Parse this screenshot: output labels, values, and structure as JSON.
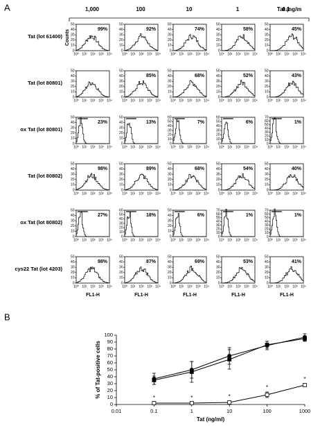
{
  "panel_a": {
    "label": "A",
    "concentrations": [
      "1,000",
      "100",
      "10",
      "1",
      "0.1"
    ],
    "concentration_unit": "Tat (ng/m",
    "counts_label": "Counts",
    "x_label": "FL1-H",
    "xticks": [
      "10⁰",
      "10¹",
      "10²",
      "10³",
      "10⁴"
    ],
    "rows": [
      {
        "label": "Tat (lot 61400)",
        "cells": [
          {
            "percent": "99%",
            "yticks": [
              0,
              10,
              20,
              30,
              40,
              50
            ]
          },
          {
            "percent": "92%",
            "yticks": [
              0,
              10,
              20,
              30,
              40,
              50
            ]
          },
          {
            "percent": "74%",
            "yticks": [
              0,
              10,
              20,
              30,
              40,
              50
            ]
          },
          {
            "percent": "58%",
            "yticks": [
              0,
              10,
              20,
              30,
              40,
              50
            ]
          },
          {
            "percent": "45%",
            "yticks": [
              0,
              10,
              20,
              30,
              40,
              50
            ]
          }
        ]
      },
      {
        "label": "Tat (lot 80801)",
        "cells": [
          {
            "percent": "",
            "yticks": [
              0,
              10,
              20,
              30,
              40,
              50
            ]
          },
          {
            "percent": "85%",
            "yticks": [
              0,
              10,
              20,
              30,
              40,
              50
            ]
          },
          {
            "percent": "68%",
            "yticks": [
              0,
              10,
              20,
              30,
              40,
              50
            ]
          },
          {
            "percent": "52%",
            "yticks": [
              0,
              10,
              20,
              30,
              40,
              50
            ]
          },
          {
            "percent": "43%",
            "yticks": [
              0,
              10,
              20,
              30,
              40,
              50
            ]
          }
        ]
      },
      {
        "label": "ox Tat (lot 80801)",
        "cells": [
          {
            "percent": "23%",
            "yticks": [
              0,
              10,
              20,
              30,
              40,
              50
            ]
          },
          {
            "percent": "13%",
            "yticks": [
              0,
              10,
              20,
              30,
              40,
              50
            ]
          },
          {
            "percent": "7%",
            "yticks": [
              0,
              10,
              20,
              30,
              40,
              50,
              60
            ]
          },
          {
            "percent": "6%",
            "yticks": [
              0,
              10,
              20,
              30,
              40,
              50,
              60
            ]
          },
          {
            "percent": "1%",
            "yticks": [
              0,
              10,
              20,
              30,
              40,
              50,
              60,
              70
            ]
          }
        ]
      },
      {
        "label": "Tat (lot 80802)",
        "cells": [
          {
            "percent": "98%",
            "yticks": [
              0,
              10,
              20,
              30,
              40,
              50
            ]
          },
          {
            "percent": "89%",
            "yticks": [
              0,
              10,
              20,
              30,
              40,
              50
            ]
          },
          {
            "percent": "68%",
            "yticks": [
              0,
              10,
              20,
              30,
              40,
              50
            ]
          },
          {
            "percent": "54%",
            "yticks": [
              0,
              10,
              20,
              30,
              40,
              50
            ]
          },
          {
            "percent": "40%",
            "yticks": [
              0,
              10,
              20,
              30,
              40,
              50
            ]
          }
        ]
      },
      {
        "label": "ox Tat (lot 80802)",
        "cells": [
          {
            "percent": "27%",
            "yticks": [
              0,
              10,
              20,
              30,
              40,
              50
            ]
          },
          {
            "percent": "18%",
            "yticks": [
              0,
              10,
              20,
              30,
              40,
              50,
              60
            ]
          },
          {
            "percent": "6%",
            "yticks": [
              0,
              10,
              20,
              30,
              40,
              50
            ]
          },
          {
            "percent": "1%",
            "yticks": [
              0,
              10,
              20,
              30,
              40,
              50,
              60,
              70
            ]
          },
          {
            "percent": "1%",
            "yticks": [
              0,
              10,
              20,
              30,
              40,
              50,
              60,
              70
            ]
          }
        ]
      },
      {
        "label": "cys22 Tat (lot 4203)",
        "cells": [
          {
            "percent": "98%",
            "yticks": [
              0,
              10,
              20,
              30,
              40,
              50
            ]
          },
          {
            "percent": "87%",
            "yticks": [
              0,
              10,
              20,
              30,
              40,
              50
            ]
          },
          {
            "percent": "69%",
            "yticks": [
              0,
              10,
              20,
              30,
              40,
              50
            ]
          },
          {
            "percent": "53%",
            "yticks": [
              0,
              10,
              20,
              30,
              40,
              50
            ]
          },
          {
            "percent": "41%",
            "yticks": [
              0,
              10,
              20,
              30,
              40,
              50
            ]
          }
        ]
      }
    ]
  },
  "panel_b_label": "B",
  "chart_data": {
    "type": "line",
    "xlabel": "Tat (ng/ml)",
    "ylabel": "% of Tat-positive cells",
    "x": [
      0.1,
      1,
      10,
      100,
      1000
    ],
    "xscale": "log",
    "xlim": [
      0.01,
      1000
    ],
    "xticks": [
      0.01,
      0.1,
      1,
      10,
      100,
      1000
    ],
    "ylim": [
      0,
      100
    ],
    "yticks": [
      0,
      10,
      20,
      30,
      40,
      50,
      60,
      70,
      80,
      90,
      100
    ],
    "annotation": "*",
    "series": [
      {
        "color": "#000000",
        "marker": "circle-filled",
        "values": [
          37,
          50,
          70,
          85,
          97
        ],
        "errors": [
          8,
          12,
          12,
          6,
          5
        ]
      },
      {
        "color": "#000000",
        "marker": "square-filled",
        "values": [
          35,
          47,
          65,
          86,
          95
        ],
        "errors": [
          6,
          15,
          14,
          5,
          4
        ]
      },
      {
        "color": "#000000",
        "marker": "square-open",
        "values": [
          2,
          2,
          3,
          14,
          28
        ],
        "errors": [
          1,
          1,
          2,
          4,
          2
        ]
      }
    ]
  }
}
